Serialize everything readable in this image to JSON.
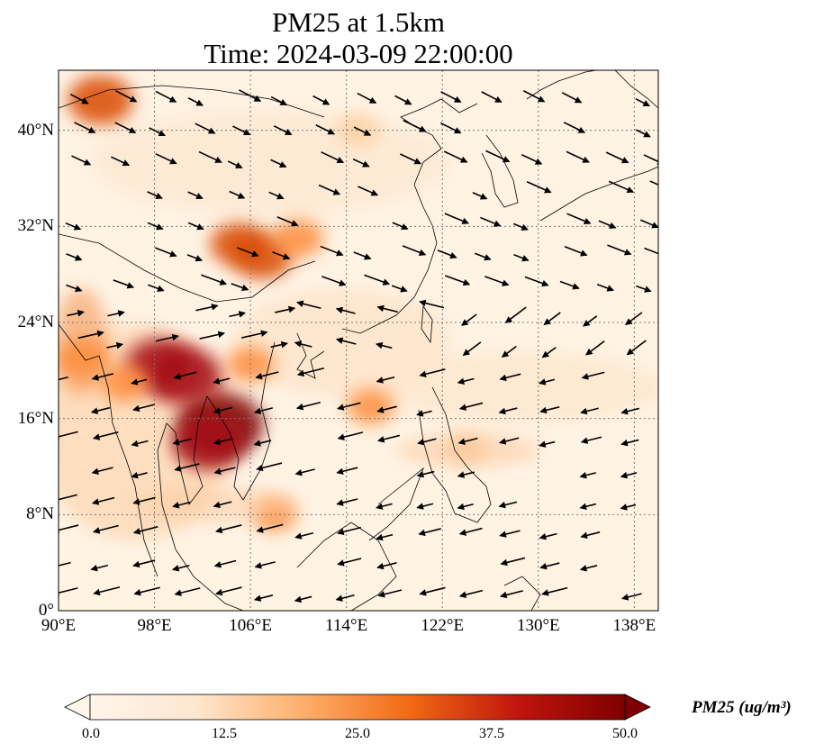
{
  "title": {
    "line1": "PM25 at 1.5km",
    "line2": "Time: 2024-03-09 22:00:00"
  },
  "map": {
    "lon_range": [
      90,
      140
    ],
    "lat_range": [
      0,
      45
    ],
    "lat_ticks": [
      {
        "value": 0,
        "label": "0°"
      },
      {
        "value": 8,
        "label": "8°N"
      },
      {
        "value": 16,
        "label": "16°N"
      },
      {
        "value": 24,
        "label": "24°N"
      },
      {
        "value": 32,
        "label": "32°N"
      },
      {
        "value": 40,
        "label": "40°N"
      }
    ],
    "lon_ticks": [
      {
        "value": 90,
        "label": "90°E"
      },
      {
        "value": 98,
        "label": "98°E"
      },
      {
        "value": 106,
        "label": "106°E"
      },
      {
        "value": 114,
        "label": "114°E"
      },
      {
        "value": 122,
        "label": "122°E"
      },
      {
        "value": 130,
        "label": "130°E"
      },
      {
        "value": 138,
        "label": "138°E"
      }
    ],
    "gridlines": true,
    "pollution_hotspots": [
      {
        "lon": 103.5,
        "lat": 15.5,
        "value": 48
      },
      {
        "lon": 100.5,
        "lat": 19.5,
        "value": 40
      },
      {
        "lon": 98.5,
        "lat": 20.5,
        "value": 35
      },
      {
        "lon": 102.5,
        "lat": 14.0,
        "value": 38
      },
      {
        "lon": 93.5,
        "lat": 42.5,
        "value": 32
      },
      {
        "lon": 107.0,
        "lat": 29.5,
        "value": 28
      },
      {
        "lon": 105.0,
        "lat": 30.5,
        "value": 25
      },
      {
        "lon": 110.0,
        "lat": 31.0,
        "value": 20
      },
      {
        "lon": 116.0,
        "lat": 17.0,
        "value": 18
      },
      {
        "lon": 92.0,
        "lat": 21.0,
        "value": 22
      },
      {
        "lon": 95.5,
        "lat": 19.0,
        "value": 20
      },
      {
        "lon": 106.0,
        "lat": 20.5,
        "value": 18
      },
      {
        "lon": 115.0,
        "lat": 40.0,
        "value": 14
      },
      {
        "lon": 108.0,
        "lat": 8.0,
        "value": 15
      },
      {
        "lon": 124.0,
        "lat": 13.5,
        "value": 14
      }
    ]
  },
  "colorbar": {
    "min": 0,
    "max": 50,
    "ticks": [
      "0.0",
      "12.5",
      "25.0",
      "37.5",
      "50.0"
    ],
    "label": "PM25 (ug/m³)",
    "colors": [
      "#fff5eb",
      "#fdd0a2",
      "#fd8d3c",
      "#d94801",
      "#a50f15",
      "#7f0000"
    ]
  }
}
